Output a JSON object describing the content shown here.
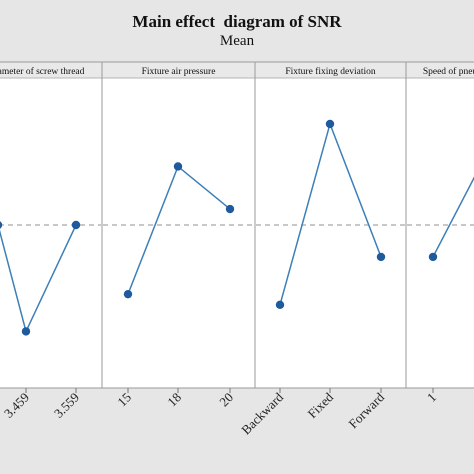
{
  "chart_data": {
    "type": "line",
    "title": "Main effect  diagram of SNR",
    "subtitle": "Mean",
    "ylim": [
      0,
      100
    ],
    "reference_line": 50,
    "colors": {
      "line": "#3d7fb8",
      "marker": "#1f5b9c",
      "reference": "#a8a8a8",
      "background": "#e6e6e6",
      "plot_bg": "#ffffff"
    },
    "panels": [
      {
        "label": "ameter of screw thread",
        "categories": [
          "",
          "3.459",
          "3.559"
        ],
        "values": [
          50,
          10,
          50
        ]
      },
      {
        "label": "Fixture air pressure",
        "categories": [
          "15",
          "18",
          "20"
        ],
        "values": [
          24,
          72,
          56
        ]
      },
      {
        "label": "Fixture fixing deviation",
        "categories": [
          "Backward",
          "Fixed",
          "Forward"
        ],
        "values": [
          20,
          88,
          38
        ]
      },
      {
        "label": "Speed of pneu",
        "categories": [
          "1",
          ""
        ],
        "values": [
          38,
          72
        ]
      }
    ]
  }
}
